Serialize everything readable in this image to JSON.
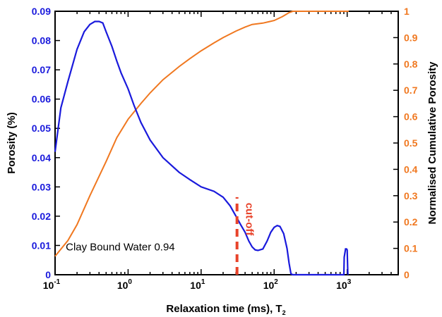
{
  "chart_data": {
    "type": "line",
    "xlabel": "Relaxation time (ms), T",
    "xlabel_sub": "2",
    "ylabel_left": "Porosity (%)",
    "ylabel_right": "Normalised Cumulative Porosity",
    "xscale": "log",
    "xlim": [
      0.1,
      5000
    ],
    "ylim_left": [
      0,
      0.09
    ],
    "ylim_right": [
      0,
      1
    ],
    "x_ticks": [
      {
        "value": 0.1,
        "base": "10",
        "exp": "-1"
      },
      {
        "value": 1,
        "base": "10",
        "exp": "0"
      },
      {
        "value": 10,
        "base": "10",
        "exp": "1"
      },
      {
        "value": 100,
        "base": "10",
        "exp": "2"
      },
      {
        "value": 1000,
        "base": "10",
        "exp": "3"
      }
    ],
    "y_left_ticks": [
      "0",
      "0.01",
      "0.02",
      "0.03",
      "0.04",
      "0.05",
      "0.06",
      "0.07",
      "0.08",
      "0.09"
    ],
    "y_right_ticks": [
      "0",
      "0.1",
      "0.2",
      "0.3",
      "0.4",
      "0.5",
      "0.6",
      "0.7",
      "0.8",
      "0.9",
      "1"
    ],
    "grid": false,
    "colors": {
      "porosity": "#1a1adc",
      "cumulative": "#f07820",
      "cutoff": "#e8432a",
      "axis": "#000000"
    },
    "series": [
      {
        "axis": "left",
        "points": [
          [
            0.1,
            0.042
          ],
          [
            0.12,
            0.057
          ],
          [
            0.15,
            0.066
          ],
          [
            0.2,
            0.077
          ],
          [
            0.25,
            0.083
          ],
          [
            0.3,
            0.0855
          ],
          [
            0.35,
            0.0865
          ],
          [
            0.4,
            0.0865
          ],
          [
            0.45,
            0.086
          ],
          [
            0.5,
            0.083
          ],
          [
            0.6,
            0.078
          ],
          [
            0.7,
            0.073
          ],
          [
            0.8,
            0.069
          ],
          [
            1.0,
            0.0635
          ],
          [
            1.2,
            0.058
          ],
          [
            1.5,
            0.052
          ],
          [
            2.0,
            0.046
          ],
          [
            3.0,
            0.04
          ],
          [
            5.0,
            0.035
          ],
          [
            7.0,
            0.0325
          ],
          [
            10.0,
            0.03
          ],
          [
            15.0,
            0.0285
          ],
          [
            20.0,
            0.0265
          ],
          [
            25.0,
            0.0235
          ],
          [
            30.0,
            0.02
          ],
          [
            35.0,
            0.017
          ],
          [
            40.0,
            0.0145
          ],
          [
            45.0,
            0.0115
          ],
          [
            50.0,
            0.0095
          ],
          [
            55.0,
            0.0085
          ],
          [
            60.0,
            0.0083
          ],
          [
            70.0,
            0.0088
          ],
          [
            80.0,
            0.0115
          ],
          [
            90.0,
            0.0145
          ],
          [
            100.0,
            0.0162
          ],
          [
            110.0,
            0.0168
          ],
          [
            120.0,
            0.0165
          ],
          [
            135.0,
            0.014
          ],
          [
            150.0,
            0.009
          ],
          [
            160.0,
            0.004
          ],
          [
            170.0,
            0.0003
          ],
          [
            180.0,
            0
          ],
          [
            900.0,
            0
          ],
          [
            910.0,
            0.006
          ],
          [
            950.0,
            0.0088
          ],
          [
            980.0,
            0.0088
          ],
          [
            1000.0,
            0.0085
          ],
          [
            1020.0,
            0.0005
          ],
          [
            1030.0,
            0
          ]
        ]
      },
      {
        "axis": "right",
        "points": [
          [
            0.1,
            0.07
          ],
          [
            0.15,
            0.13
          ],
          [
            0.2,
            0.19
          ],
          [
            0.3,
            0.3
          ],
          [
            0.5,
            0.43
          ],
          [
            0.7,
            0.52
          ],
          [
            1.0,
            0.59
          ],
          [
            1.5,
            0.65
          ],
          [
            2.0,
            0.69
          ],
          [
            3.0,
            0.74
          ],
          [
            5.0,
            0.79
          ],
          [
            7.0,
            0.82
          ],
          [
            10.0,
            0.85
          ],
          [
            15.0,
            0.88
          ],
          [
            20.0,
            0.9
          ],
          [
            30.0,
            0.925
          ],
          [
            40.0,
            0.94
          ],
          [
            50.0,
            0.95
          ],
          [
            70.0,
            0.955
          ],
          [
            100.0,
            0.965
          ],
          [
            130.0,
            0.98
          ],
          [
            160.0,
            0.995
          ],
          [
            180.0,
            1.0
          ],
          [
            1000.0,
            1.0
          ],
          [
            1050.0,
            1.0
          ]
        ]
      }
    ],
    "annotations": [
      {
        "text": "Clay Bound Water 0.94",
        "x": 0.14,
        "y_left": 0.0095
      },
      {
        "text": "cut-off",
        "x": 33,
        "y_left": 0.019,
        "rotation": 90
      }
    ],
    "cutoff_line": {
      "x": 31,
      "y_from": 0,
      "y_to": 0.0265
    }
  }
}
